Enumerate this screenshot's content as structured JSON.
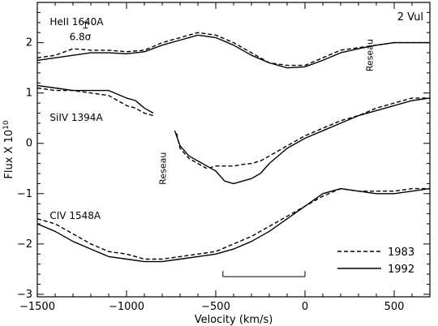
{
  "chart_data": {
    "type": "line",
    "xlabel": "Velocity (km/s)",
    "ylabel": "Flux X 10",
    "ylabel_sup": "10",
    "xlim": [
      -1500,
      700
    ],
    "ylim": [
      -3.05,
      2.8
    ],
    "xticks": [
      -1500,
      -1000,
      -500,
      0,
      500
    ],
    "yticks": [
      -3,
      -2,
      -1,
      0,
      1,
      2
    ],
    "star_label": "2 Vul",
    "grid": false,
    "legend_position": "bottom-right",
    "series_styles": [
      {
        "name": "1983",
        "dash": "5,3",
        "color": "#000000"
      },
      {
        "name": "1992",
        "dash": "",
        "color": "#000000"
      }
    ],
    "line_labels": [
      {
        "text": "HeII 1640A",
        "x": -1430,
        "y": 2.35
      },
      {
        "text": "SiIV 1394A",
        "x": -1430,
        "y": 0.45
      },
      {
        "text": "CIV 1548A",
        "x": -1430,
        "y": -1.5
      }
    ],
    "sigma_label": {
      "text": "6.8σ",
      "x": -1320,
      "y": 2.05
    },
    "error_bar": {
      "x": -1230,
      "y": 2.35,
      "half_width": 10
    },
    "reseau_marks": [
      {
        "text": "Reseau",
        "x": 380,
        "y": 1.75
      },
      {
        "text": "Reseau",
        "x": -780,
        "y": -0.5
      }
    ],
    "scale_bar": {
      "x_start": -460,
      "x_end": 0,
      "y": -2.65
    },
    "spectra": [
      {
        "line": "HeII 1640A",
        "series": [
          {
            "name": "1983",
            "x": [
              -1500,
              -1400,
              -1300,
              -1200,
              -1100,
              -1000,
              -900,
              -800,
              -700,
              -600,
              -500,
              -400,
              -300,
              -200,
              -100,
              0,
              100,
              200,
              300,
              400,
              500,
              600,
              700
            ],
            "y": [
              1.7,
              1.75,
              1.88,
              1.85,
              1.85,
              1.82,
              1.85,
              2.0,
              2.1,
              2.2,
              2.15,
              2.0,
              1.8,
              1.6,
              1.55,
              1.55,
              1.7,
              1.85,
              1.9,
              1.95,
              2.0,
              2.0,
              2.0
            ]
          },
          {
            "name": "1992",
            "x": [
              -1500,
              -1400,
              -1300,
              -1200,
              -1100,
              -1000,
              -900,
              -800,
              -700,
              -600,
              -500,
              -400,
              -300,
              -200,
              -100,
              0,
              100,
              200,
              300,
              400,
              500,
              600,
              700
            ],
            "y": [
              1.65,
              1.7,
              1.75,
              1.8,
              1.8,
              1.78,
              1.82,
              1.95,
              2.05,
              2.15,
              2.1,
              1.95,
              1.75,
              1.6,
              1.5,
              1.52,
              1.65,
              1.8,
              1.88,
              1.95,
              2.0,
              2.0,
              2.0
            ]
          }
        ]
      },
      {
        "line": "SiIV 1394A",
        "series": [
          {
            "name": "1983",
            "x": [
              -1500,
              -1400,
              -1300,
              -1200,
              -1100,
              -1000,
              -950,
              -900,
              -850,
              null,
              -720,
              -700,
              -650,
              -600,
              -550,
              -500,
              -450,
              -400,
              -350,
              -300,
              -250,
              -200,
              -100,
              0,
              100,
              200,
              300,
              400,
              500,
              600,
              700
            ],
            "y": [
              1.1,
              1.05,
              1.05,
              1.0,
              0.95,
              0.75,
              0.7,
              0.6,
              0.55,
              null,
              0.2,
              -0.1,
              -0.3,
              -0.4,
              -0.5,
              -0.45,
              -0.45,
              -0.45,
              -0.42,
              -0.4,
              -0.35,
              -0.25,
              -0.05,
              0.15,
              0.3,
              0.45,
              0.55,
              0.7,
              0.8,
              0.9,
              0.9
            ]
          },
          {
            "name": "1992",
            "x": [
              -1500,
              -1400,
              -1300,
              -1200,
              -1100,
              -1000,
              -950,
              -900,
              -850,
              null,
              -730,
              -700,
              -650,
              -600,
              -550,
              -500,
              -450,
              -400,
              -350,
              -300,
              -250,
              -200,
              -100,
              0,
              100,
              200,
              300,
              400,
              500,
              600,
              700
            ],
            "y": [
              1.15,
              1.1,
              1.05,
              1.05,
              1.05,
              0.9,
              0.85,
              0.7,
              0.6,
              null,
              0.25,
              -0.05,
              -0.25,
              -0.35,
              -0.45,
              -0.55,
              -0.75,
              -0.8,
              -0.75,
              -0.7,
              -0.6,
              -0.4,
              -0.1,
              0.1,
              0.25,
              0.4,
              0.55,
              0.65,
              0.75,
              0.85,
              0.9
            ]
          }
        ]
      },
      {
        "line": "CIV 1548A",
        "series": [
          {
            "name": "1983",
            "x": [
              -1500,
              -1400,
              -1300,
              -1200,
              -1100,
              -1000,
              -900,
              -800,
              -700,
              -600,
              -500,
              -400,
              -300,
              -200,
              -100,
              0,
              100,
              200,
              300,
              400,
              500,
              600,
              700
            ],
            "y": [
              -1.5,
              -1.6,
              -1.8,
              -2.0,
              -2.15,
              -2.2,
              -2.3,
              -2.3,
              -2.25,
              -2.2,
              -2.15,
              -2.0,
              -1.85,
              -1.65,
              -1.45,
              -1.25,
              -1.05,
              -0.9,
              -0.95,
              -0.95,
              -0.95,
              -0.9,
              -0.9
            ]
          },
          {
            "name": "1992",
            "x": [
              -1500,
              -1400,
              -1300,
              -1200,
              -1100,
              -1000,
              -900,
              -800,
              -700,
              -600,
              -500,
              -400,
              -300,
              -200,
              -100,
              0,
              100,
              200,
              300,
              400,
              500,
              600,
              700
            ],
            "y": [
              -1.6,
              -1.75,
              -1.95,
              -2.1,
              -2.25,
              -2.3,
              -2.35,
              -2.35,
              -2.3,
              -2.25,
              -2.2,
              -2.1,
              -1.95,
              -1.75,
              -1.5,
              -1.25,
              -1.0,
              -0.9,
              -0.95,
              -1.0,
              -1.0,
              -0.95,
              -0.9
            ]
          }
        ]
      }
    ]
  }
}
